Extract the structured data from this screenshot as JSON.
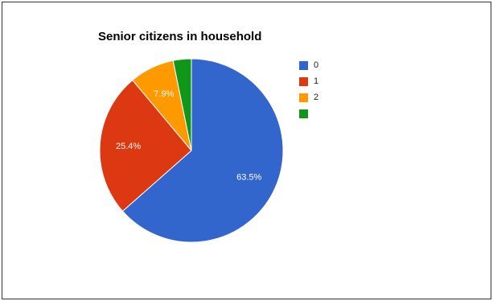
{
  "chart_data": {
    "type": "pie",
    "title": "Senior citizens in household",
    "categories": [
      "0",
      "1",
      "2",
      ""
    ],
    "values": [
      63.5,
      25.4,
      7.9,
      3.2
    ],
    "data_labels": [
      "63.5%",
      "25.4%",
      "7.9%",
      ""
    ],
    "colors": [
      "#3366cc",
      "#dc3912",
      "#ff9900",
      "#109618"
    ],
    "legend_position": "right",
    "start_angle_deg": 0,
    "direction": "clockwise"
  }
}
